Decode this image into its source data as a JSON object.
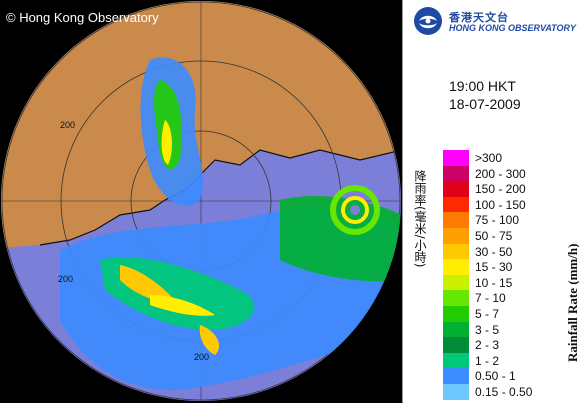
{
  "radar": {
    "copyright": "© Hong Kong Observatory",
    "range_labels": [
      "200",
      "200",
      "200"
    ]
  },
  "header": {
    "logo_cn": "香港天文台",
    "logo_en": "HONG KONG OBSERVATORY"
  },
  "timestamp": {
    "time": "19:00 HKT",
    "date": "18-07-2009"
  },
  "legend": {
    "title_en": "Rainfall Rate (mm/h)",
    "title_cn": "降雨率(毫米/小時)",
    "items": [
      {
        "label": ">300",
        "color": "#ff00ff"
      },
      {
        "label": "200 - 300",
        "color": "#cc0066"
      },
      {
        "label": "150 - 200",
        "color": "#e0001a"
      },
      {
        "label": "100 - 150",
        "color": "#ff2a00"
      },
      {
        "label": "75 - 100",
        "color": "#ff7a00"
      },
      {
        "label": "50 - 75",
        "color": "#ffa000"
      },
      {
        "label": "30 - 50",
        "color": "#ffc800"
      },
      {
        "label": "15 - 30",
        "color": "#ffee00"
      },
      {
        "label": "10 - 15",
        "color": "#c8f000"
      },
      {
        "label": "7 - 10",
        "color": "#66e600"
      },
      {
        "label": "5 - 7",
        "color": "#22cc00"
      },
      {
        "label": "3 - 5",
        "color": "#00b030"
      },
      {
        "label": "2 - 3",
        "color": "#008a3a"
      },
      {
        "label": "1 - 2",
        "color": "#00c878"
      },
      {
        "label": "0.50 - 1",
        "color": "#3a8cff"
      },
      {
        "label": "0.15 - 0.50",
        "color": "#6ec8ff"
      }
    ]
  }
}
